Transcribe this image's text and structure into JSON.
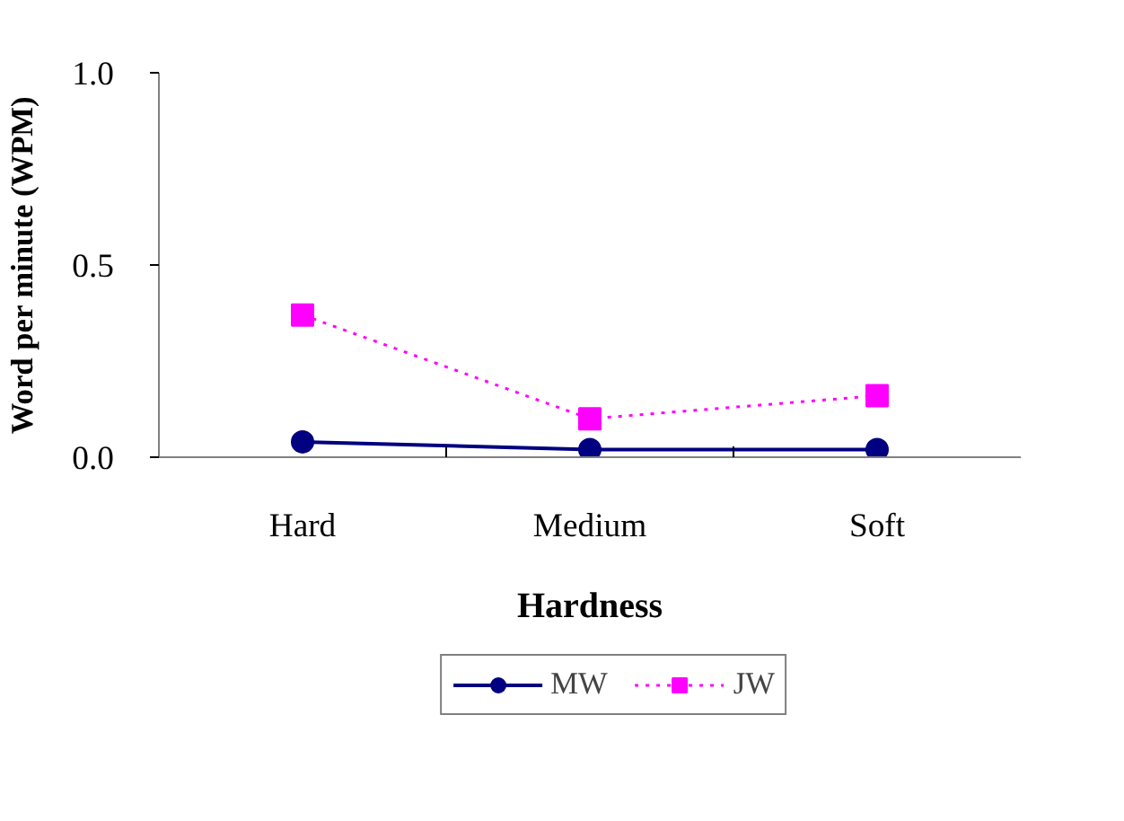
{
  "chart_data": {
    "type": "line",
    "xlabel": "Hardness",
    "ylabel": "Word per minute (WPM)",
    "categories": [
      "Hard",
      "Medium",
      "Soft"
    ],
    "series": [
      {
        "name": "MW",
        "color": "#000080",
        "values": [
          0.04,
          0.02,
          0.02
        ],
        "marker": "circle",
        "line_style": "solid"
      },
      {
        "name": "JW",
        "color": "#ff00ff",
        "values": [
          0.37,
          0.1,
          0.16
        ],
        "marker": "square",
        "line_style": "dotted"
      }
    ],
    "ylim": [
      0,
      1.0
    ],
    "yticks": [
      {
        "value": 0,
        "label": "0.0"
      },
      {
        "value": 0.5,
        "label": "0.5"
      },
      {
        "value": 1.0,
        "label": "1.0"
      }
    ],
    "grid": false,
    "legend": "bottom"
  }
}
